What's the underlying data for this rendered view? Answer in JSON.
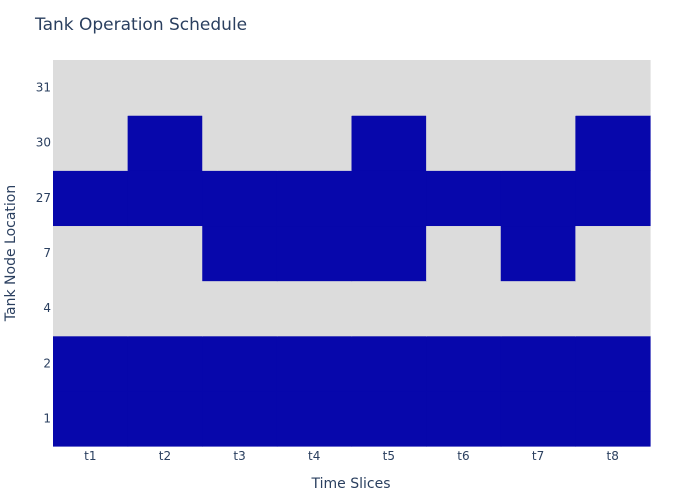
{
  "chart_data": {
    "type": "heatmap",
    "title": "Tank Operation Schedule",
    "xlabel": "Time Slices",
    "ylabel": "Tank Node Location",
    "x": [
      "t1",
      "t2",
      "t3",
      "t4",
      "t5",
      "t6",
      "t7",
      "t8"
    ],
    "y": [
      "1",
      "2",
      "4",
      "7",
      "27",
      "30",
      "31"
    ],
    "z": [
      [
        1,
        1,
        1,
        1,
        1,
        1,
        1,
        1
      ],
      [
        1,
        1,
        1,
        1,
        1,
        1,
        1,
        1
      ],
      [
        0,
        0,
        0,
        0,
        0,
        0,
        0,
        0
      ],
      [
        0,
        0,
        1,
        1,
        1,
        0,
        1,
        0
      ],
      [
        1,
        1,
        1,
        1,
        1,
        1,
        1,
        1
      ],
      [
        0,
        1,
        0,
        0,
        1,
        0,
        0,
        1
      ],
      [
        0,
        0,
        0,
        0,
        0,
        0,
        0,
        0
      ]
    ],
    "colorscale": {
      "0": "#dcdcdc",
      "1": "#0707ab"
    },
    "colorbar": false,
    "grid": false
  }
}
